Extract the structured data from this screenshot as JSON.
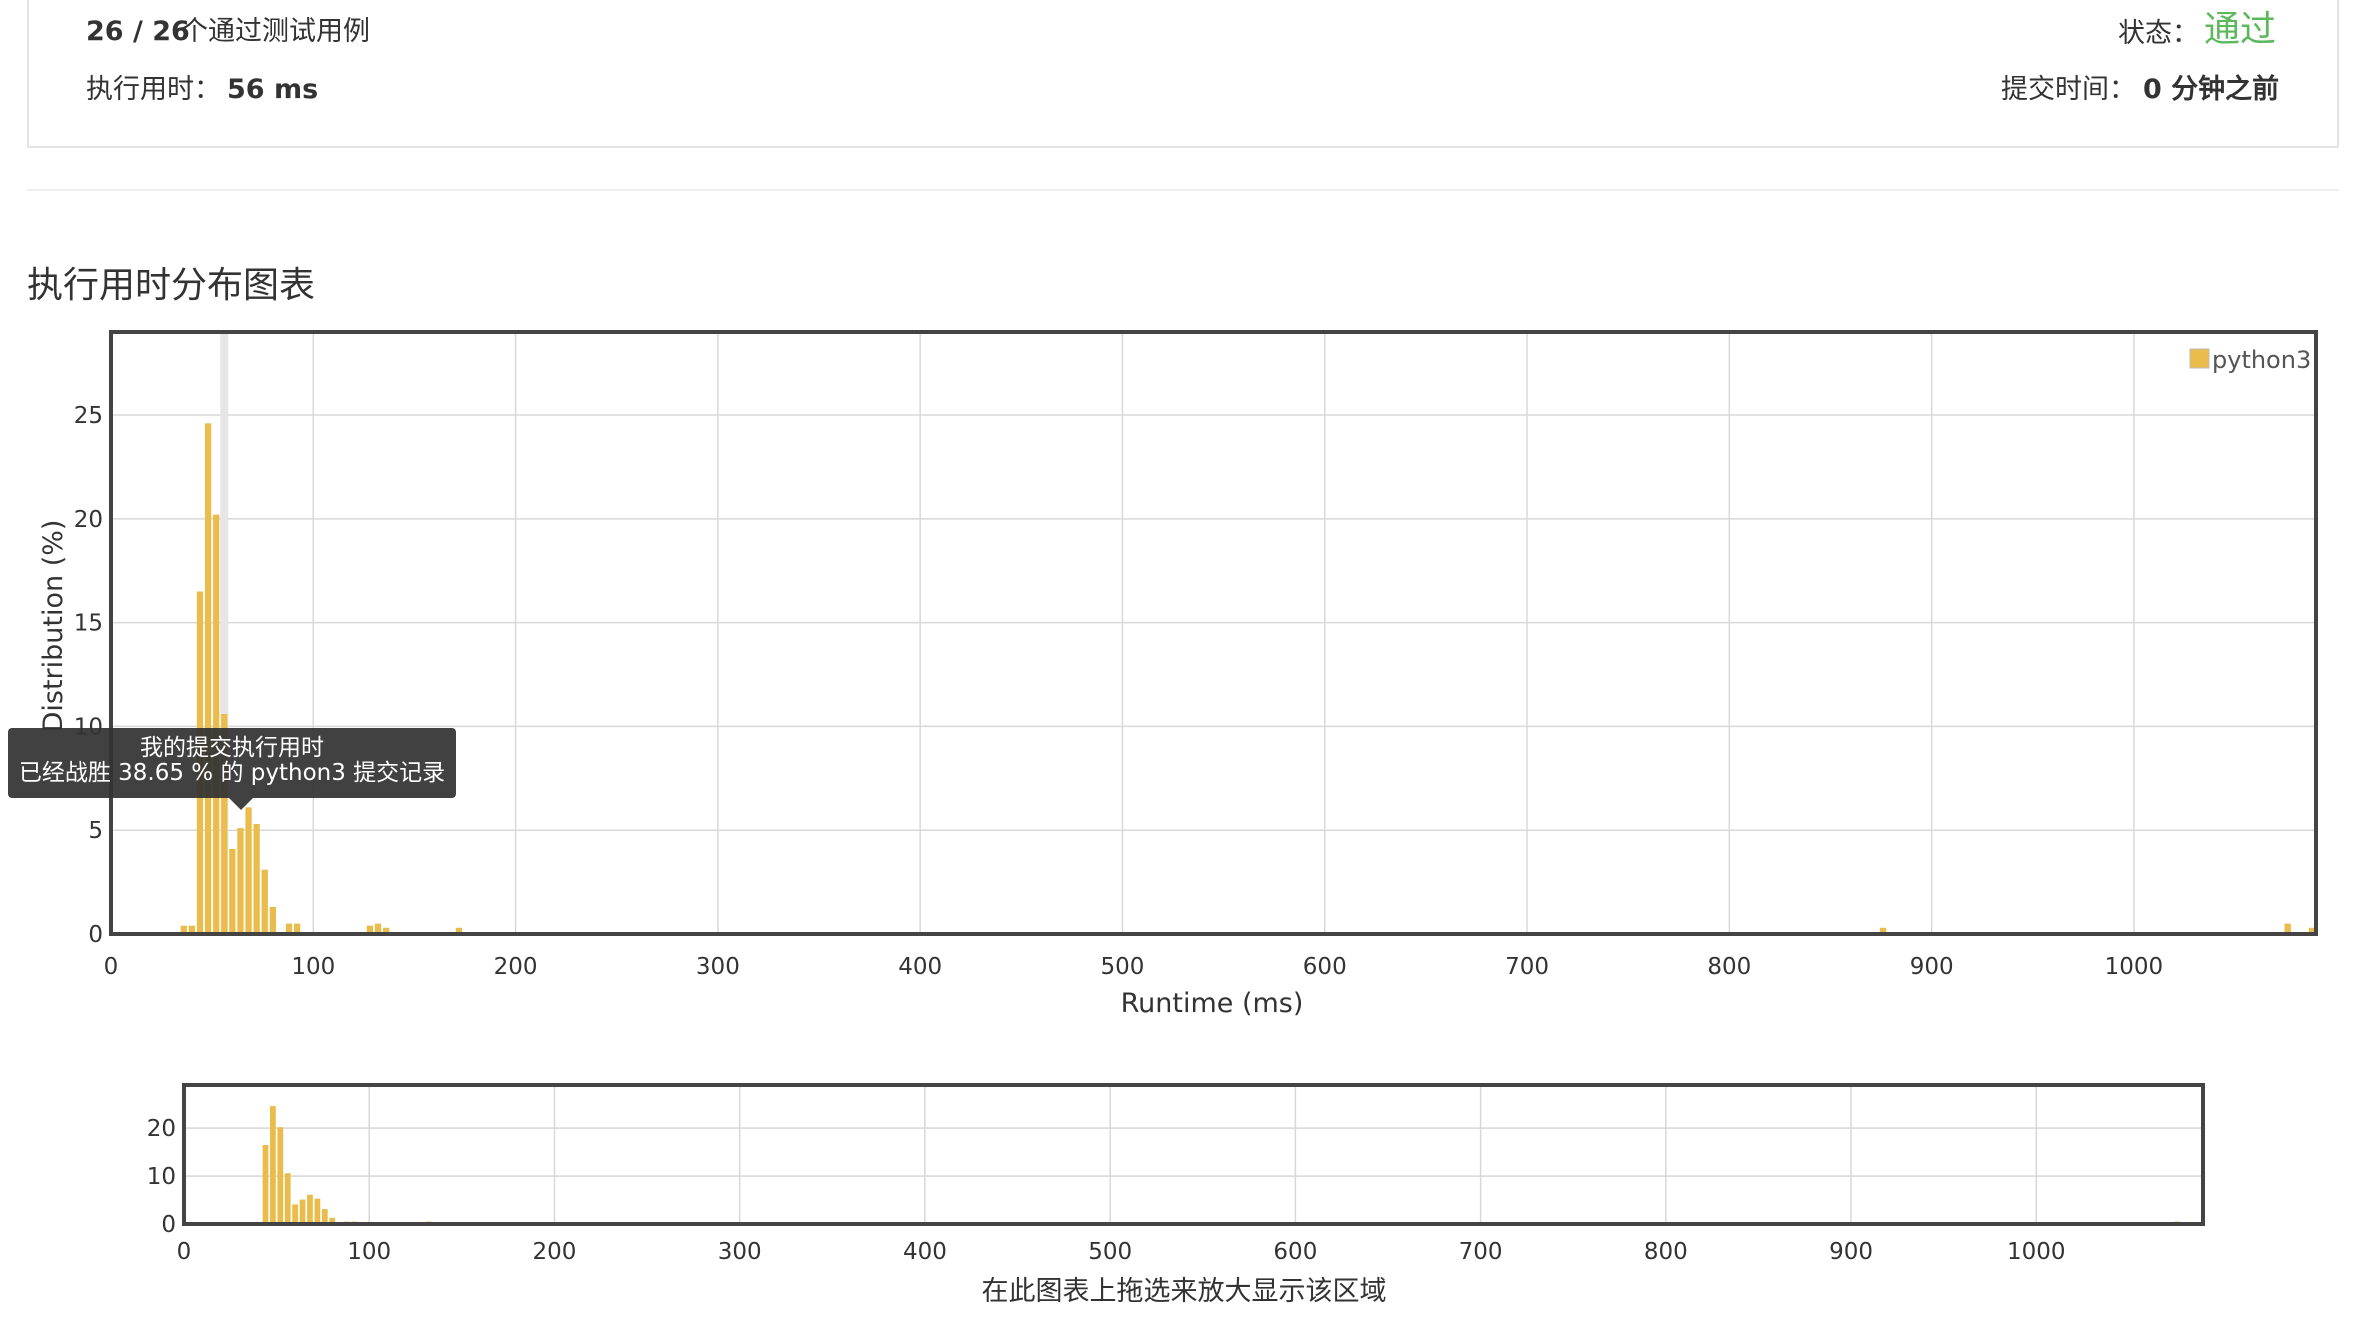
{
  "summary": {
    "testcases_count": "26 / 26",
    "testcases_label": "个通过测试用例",
    "status_label": "状态：",
    "status_value": "通过",
    "runtime_label": "执行用时：",
    "runtime_value": "56 ms",
    "submit_time_label": "提交时间：",
    "submit_time_value": "0 分钟之前"
  },
  "section_title": "执行用时分布图表",
  "tooltip": {
    "line1": "我的提交执行用时",
    "line2": "已经战胜 38.65 % 的 python3 提交记录"
  },
  "navigator_caption": "在此图表上拖选来放大显示该区域",
  "colors": {
    "bar": "#eabc4b",
    "status_pass": "#5cb85c",
    "highlight": "#e6e6e6",
    "frame": "#444444",
    "grid": "#d8d8d8"
  },
  "chart_data": [
    {
      "type": "bar",
      "title": "",
      "xlabel": "Runtime (ms)",
      "ylabel": "Distribution (%)",
      "xlim": [
        0,
        1090
      ],
      "ylim": [
        0,
        29
      ],
      "x_ticks": [
        "0",
        "100",
        "200",
        "300",
        "400",
        "500",
        "600",
        "700",
        "800",
        "900",
        "1000"
      ],
      "y_ticks": [
        "0",
        "5",
        "10",
        "15",
        "20",
        "25"
      ],
      "grid": true,
      "legend_position": "top-right",
      "highlight_x": 56,
      "series": [
        {
          "name": "python3",
          "color": "#eabc4b",
          "x": [
            36,
            40,
            44,
            48,
            52,
            56,
            60,
            64,
            68,
            72,
            76,
            80,
            88,
            92,
            128,
            132,
            136,
            172,
            876,
            1076,
            1088
          ],
          "values": [
            0.4,
            0.4,
            16.5,
            24.6,
            20.2,
            10.6,
            4.1,
            5.1,
            6.1,
            5.3,
            3.1,
            1.3,
            0.5,
            0.5,
            0.4,
            0.5,
            0.3,
            0.3,
            0.3,
            0.5,
            0.3
          ]
        }
      ]
    },
    {
      "type": "bar",
      "title": "",
      "xlabel": "",
      "ylabel": "",
      "xlim": [
        0,
        1090
      ],
      "ylim": [
        0,
        29
      ],
      "x_ticks": [
        "0",
        "100",
        "200",
        "300",
        "400",
        "500",
        "600",
        "700",
        "800",
        "900",
        "1000"
      ],
      "y_ticks": [
        "0",
        "10",
        "20"
      ],
      "grid": true,
      "series": [
        {
          "color": "#eabc4b",
          "x": [
            36,
            40,
            44,
            48,
            52,
            56,
            60,
            64,
            68,
            72,
            76,
            80,
            88,
            92,
            128,
            132,
            136,
            172,
            876,
            1076,
            1088
          ],
          "values": [
            0.4,
            0.4,
            16.5,
            24.6,
            20.2,
            10.6,
            4.1,
            5.1,
            6.1,
            5.3,
            3.1,
            1.3,
            0.5,
            0.5,
            0.4,
            0.5,
            0.3,
            0.3,
            0.3,
            0.5,
            0.3
          ]
        }
      ]
    }
  ]
}
